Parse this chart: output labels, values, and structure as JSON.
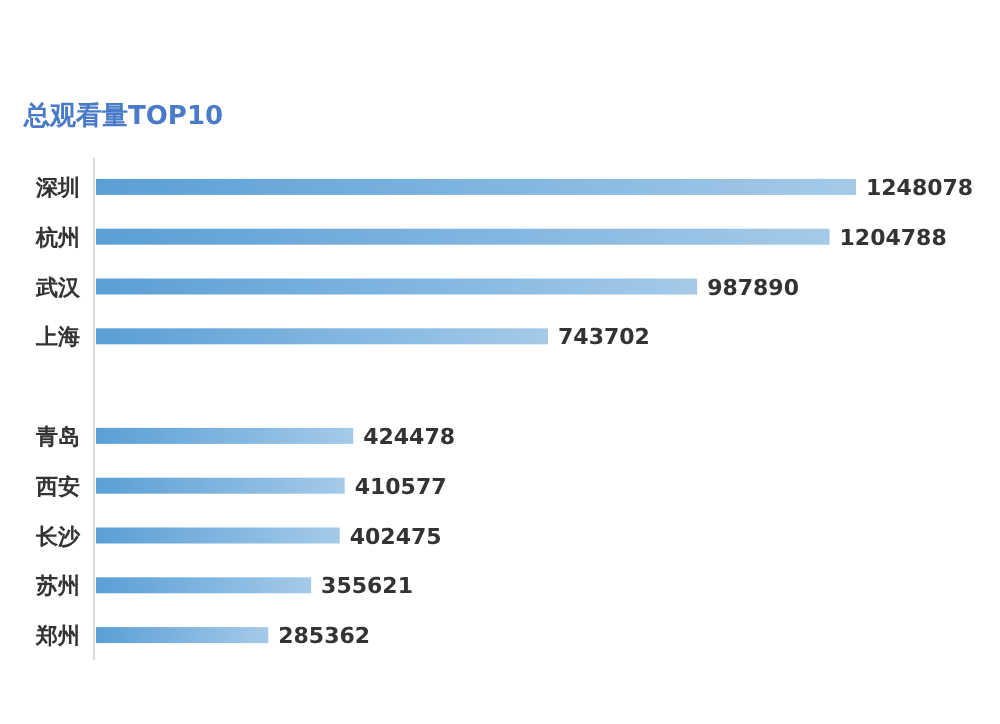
{
  "chart_data": {
    "type": "bar",
    "orientation": "horizontal",
    "title": "总观看量TOP10",
    "categories": [
      "深圳",
      "杭州",
      "武汉",
      "上海",
      null,
      "青岛",
      "西安",
      "长沙",
      "苏州",
      "郑州"
    ],
    "values": [
      1248078,
      1204788,
      987890,
      743702,
      null,
      424478,
      410577,
      402475,
      355621,
      285362
    ],
    "color": "#5a9fd6",
    "data_labels": true
  }
}
